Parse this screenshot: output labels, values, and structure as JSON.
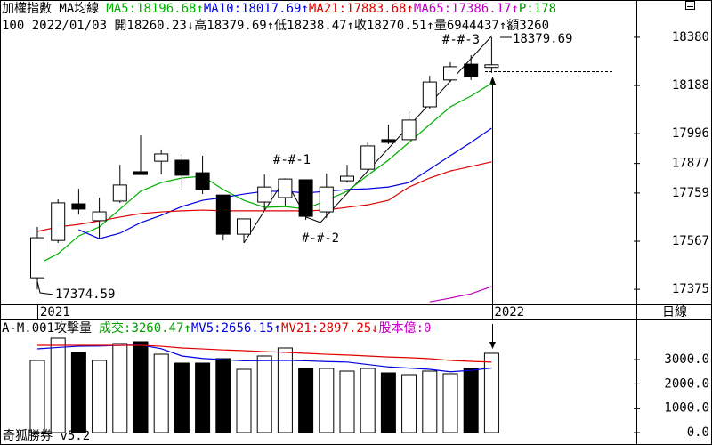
{
  "chart_data": [
    {
      "type": "candlestick",
      "title": "加權指數 MA均線",
      "info": "100 2022/01/03 開18260.23↓高18379.69↑低18238.47↑收18270.51↑量6944437↑額3260",
      "legend_extra": {
        "text": "P:178",
        "color": "#009000"
      },
      "period": "日線",
      "categories": [
        "2021",
        null,
        null,
        null,
        null,
        null,
        null,
        null,
        null,
        null,
        null,
        null,
        null,
        null,
        null,
        null,
        null,
        null,
        null,
        null,
        null,
        null,
        "2022"
      ],
      "open": [
        17421,
        17570,
        17716,
        17649,
        17727,
        17844,
        17886,
        17890,
        17840,
        17751,
        17595,
        17723,
        17741,
        17812,
        17684,
        17808,
        17854,
        17972,
        17972,
        18103,
        18210,
        18273,
        18260.23
      ],
      "high": [
        17624,
        17734,
        17776,
        17741,
        17872,
        17989,
        17933,
        17915,
        17908,
        17751,
        17656,
        17833,
        17815,
        17812,
        17837,
        17872,
        17961,
        18032,
        18085,
        18227,
        18281,
        18309,
        18379.69
      ],
      "low": [
        17374.59,
        17560,
        17673,
        17577,
        17720,
        17833,
        17833,
        17769,
        17755,
        17570,
        17560,
        17691,
        17709,
        17652,
        17659,
        17801,
        17847,
        17954,
        17972,
        18096,
        18202,
        18210,
        18238.47
      ],
      "close": [
        17581,
        17720,
        17695,
        17684,
        17791,
        17833,
        17915,
        17830,
        17773,
        17595,
        17656,
        17783,
        17815,
        17666,
        17783,
        17826,
        17947,
        17961,
        18050,
        18202,
        18263,
        18224,
        18270.51
      ],
      "color": "#000000",
      "series": [
        {
          "name": "MA5:18196.68↑",
          "color": "#00b000",
          "values": [
            17474,
            17517,
            17588,
            17624,
            17695,
            17766,
            17801,
            17819,
            17826,
            17773,
            17730,
            17702,
            17705,
            17695,
            17730,
            17766,
            17830,
            17890,
            17961,
            18032,
            18103,
            18146,
            18196.68
          ]
        },
        {
          "name": "MA10:18017.69↑",
          "color": "#0000e0",
          "values": [
            null,
            null,
            17613,
            17577,
            17599,
            17641,
            17670,
            17705,
            17730,
            17741,
            17755,
            17766,
            17766,
            17759,
            17766,
            17773,
            17776,
            17783,
            17801,
            17854,
            17908,
            17961,
            18017.69
          ]
        },
        {
          "name": "MA21:17883.68↑",
          "color": "#e00000",
          "values": [
            17606,
            17624,
            17634,
            17648,
            17663,
            17677,
            17684,
            17688,
            17691,
            17688,
            17688,
            17688,
            17688,
            17688,
            17691,
            17702,
            17712,
            17730,
            17783,
            17819,
            17847,
            17865,
            17883.68
          ]
        },
        {
          "name": "MA65:17386.17↑",
          "color": "#c000c0",
          "values": [
            null,
            null,
            null,
            null,
            null,
            null,
            null,
            null,
            null,
            null,
            null,
            null,
            null,
            null,
            null,
            null,
            null,
            null,
            null,
            17325,
            17340,
            17357,
            17386.17
          ]
        }
      ],
      "annotations": [
        "#-#-1",
        "#-#-2",
        "#-#-3",
        "18379.69",
        "17374.59"
      ],
      "ylim": [
        17315,
        18465
      ],
      "yticks": [
        18380,
        18188,
        17996,
        17877,
        17759,
        17567,
        17375
      ]
    },
    {
      "type": "bar",
      "title": "A-M.001攻擊量",
      "legend_extra": {
        "text": "股本億:0",
        "color": "#c000c0"
      },
      "series": [
        {
          "type": "bar",
          "name": "成交:3260.47↑",
          "color": "#00a000",
          "values": [
            2967,
            3883,
            3297,
            2967,
            3663,
            3736,
            3223,
            2857,
            2857,
            3040,
            2601,
            3150,
            3480,
            2637,
            2637,
            2527,
            2637,
            2454,
            2381,
            2527,
            2418,
            2637,
            3260.47
          ]
        },
        {
          "type": "line",
          "name": "MV5:2656.15↑",
          "color": "#0000e0",
          "values": [
            3443,
            3500,
            3550,
            3560,
            3590,
            3600,
            3450,
            3150,
            3050,
            3000,
            2950,
            2960,
            2970,
            2950,
            2920,
            2900,
            2800,
            2700,
            2650,
            2600,
            2500,
            2560,
            2656.15
          ]
        },
        {
          "type": "line",
          "name": "MV21:2897.25↓",
          "color": "#e00000",
          "values": [
            3590,
            3590,
            3590,
            3590,
            3590,
            3590,
            3550,
            3480,
            3440,
            3400,
            3370,
            3330,
            3300,
            3260,
            3220,
            3190,
            3150,
            3110,
            3080,
            3040,
            2970,
            2930,
            2897.25
          ]
        }
      ],
      "ylim": [
        0,
        4615
      ],
      "yticks": [
        {
          "value": 3000,
          "label": "3000.0"
        },
        {
          "value": 2000,
          "label": "2000.0"
        },
        {
          "value": 1000,
          "label": "1000.0"
        },
        {
          "value": 0,
          "label": "0.0"
        }
      ]
    },
    {
      "footer": "奇狐勝券 v5.2"
    }
  ]
}
